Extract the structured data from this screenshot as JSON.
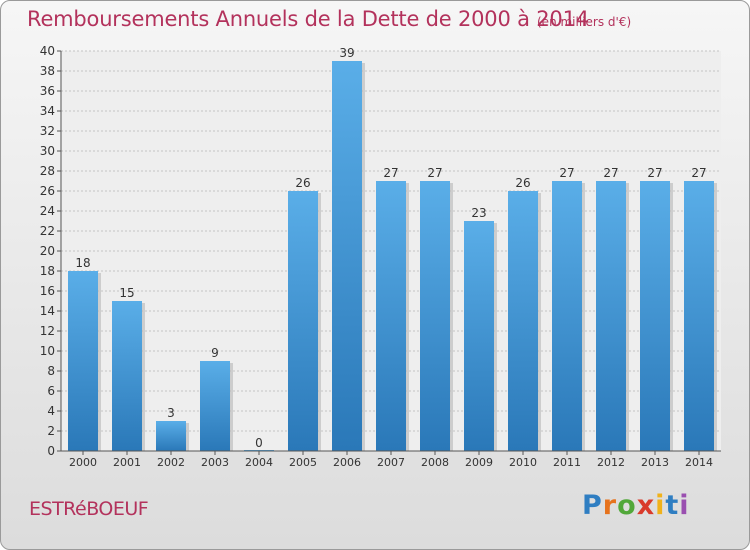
{
  "header": {
    "title": "Remboursements Annuels de la Dette de 2000 à 2014",
    "unit": "(en milliers d'€)"
  },
  "footer": {
    "commune": "ESTRéBOEUF",
    "logo_letters": [
      "P",
      "r",
      "o",
      "x",
      "i",
      "t",
      "i"
    ],
    "logo_colors": [
      "#2f7ec2",
      "#e6731d",
      "#52a83a",
      "#d93a2b",
      "#f0b21b",
      "#2f7ec2",
      "#9a4fb0"
    ]
  },
  "colors": {
    "bar_top": "#5aaee8",
    "bar_bottom": "#2a78b8",
    "axis": "#555555",
    "grid": "#c4c4c4",
    "text": "#333333"
  },
  "chart_data": {
    "type": "bar",
    "categories": [
      "2000",
      "2001",
      "2002",
      "2003",
      "2004",
      "2005",
      "2006",
      "2007",
      "2008",
      "2009",
      "2010",
      "2011",
      "2012",
      "2013",
      "2014"
    ],
    "values": [
      18,
      15,
      3,
      9,
      0,
      26,
      39,
      27,
      27,
      23,
      26,
      27,
      27,
      27,
      27
    ],
    "ylim": [
      0,
      40
    ],
    "yticks": [
      "0",
      "2",
      "4",
      "6",
      "8",
      "10",
      "12",
      "14",
      "16",
      "18",
      "20",
      "22",
      "24",
      "26",
      "28",
      "30",
      "32",
      "34",
      "36",
      "38",
      "40"
    ],
    "grid": true
  }
}
